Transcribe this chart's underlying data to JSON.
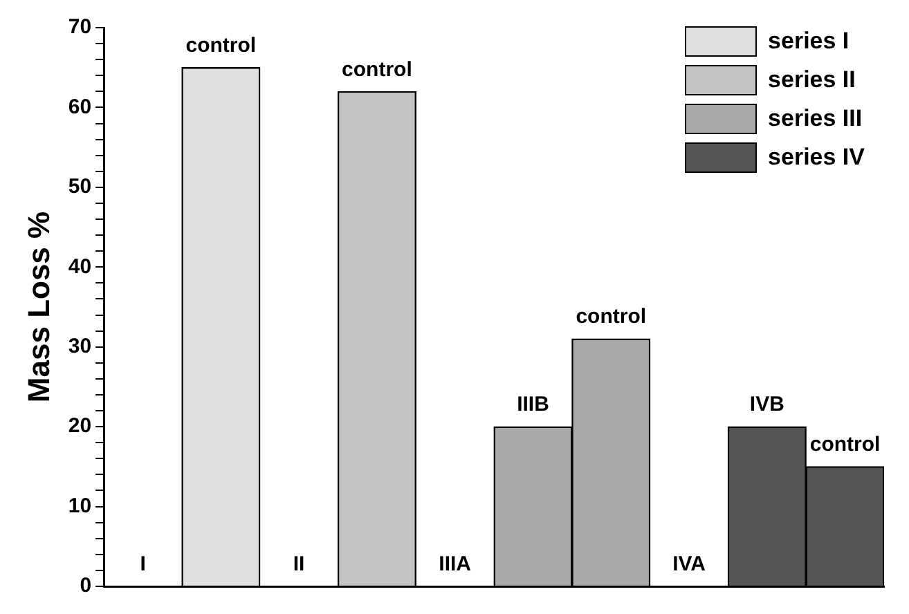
{
  "chart_data": {
    "type": "bar",
    "ylabel": "Mass Loss %",
    "categories": [
      null,
      null,
      null,
      null,
      null,
      null,
      null,
      null,
      null,
      null
    ],
    "series": [
      {
        "name": "series I",
        "color": "#e0e0e0",
        "values": [
          0,
          65,
          null,
          null,
          null,
          null,
          null,
          null,
          null,
          null
        ],
        "value_labels": [
          "I",
          "control",
          null,
          null,
          null,
          null,
          null,
          null,
          null,
          null
        ]
      },
      {
        "name": "series II",
        "color": "#c4c4c4",
        "values": [
          null,
          null,
          0,
          62,
          null,
          null,
          null,
          null,
          null,
          null
        ],
        "value_labels": [
          null,
          null,
          "II",
          "control",
          null,
          null,
          null,
          null,
          null,
          null
        ]
      },
      {
        "name": "series III",
        "color": "#a9a9a9",
        "values": [
          null,
          null,
          null,
          null,
          0,
          20,
          31,
          null,
          null,
          null
        ],
        "value_labels": [
          null,
          null,
          null,
          null,
          "IIIA",
          "IIIB",
          "control",
          null,
          null,
          null
        ]
      },
      {
        "name": "series IV",
        "color": "#555555",
        "values": [
          null,
          null,
          null,
          null,
          null,
          null,
          null,
          0,
          20,
          15
        ],
        "value_labels": [
          null,
          null,
          null,
          null,
          null,
          null,
          null,
          "IVA",
          "IVB",
          "control"
        ]
      }
    ],
    "ylim": [
      0,
      70
    ],
    "yticks": [
      0,
      {
        "value": 2,
        "label": null
      },
      {
        "value": 4,
        "label": null
      },
      {
        "value": 6,
        "label": null
      },
      {
        "value": 8,
        "label": null
      },
      10,
      {
        "value": 12,
        "label": null
      },
      {
        "value": 14,
        "label": null
      },
      {
        "value": 16,
        "label": null
      },
      {
        "value": 18,
        "label": null
      },
      20,
      {
        "value": 22,
        "label": null
      },
      {
        "value": 24,
        "label": null
      },
      {
        "value": 26,
        "label": null
      },
      {
        "value": 28,
        "label": null
      },
      30,
      {
        "value": 32,
        "label": null
      },
      {
        "value": 34,
        "label": null
      },
      {
        "value": 36,
        "label": null
      },
      {
        "value": 38,
        "label": null
      },
      40,
      {
        "value": 42,
        "label": null
      },
      {
        "value": 44,
        "label": null
      },
      {
        "value": 46,
        "label": null
      },
      {
        "value": 48,
        "label": null
      },
      50,
      {
        "value": 52,
        "label": null
      },
      {
        "value": 54,
        "label": null
      },
      {
        "value": 56,
        "label": null
      },
      {
        "value": 58,
        "label": null
      },
      60,
      {
        "value": 62,
        "label": null
      },
      {
        "value": 64,
        "label": null
      },
      {
        "value": 66,
        "label": null
      },
      {
        "value": 68,
        "label": null
      },
      70
    ],
    "grid": false,
    "legend": "top right",
    "tick_labels": "y"
  }
}
